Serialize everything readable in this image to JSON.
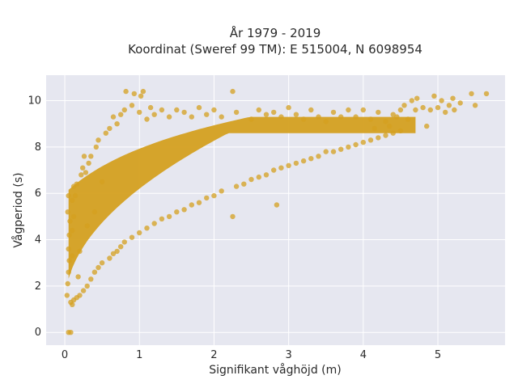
{
  "chart_data": {
    "type": "scatter",
    "title": "År 1979 - 2019",
    "subtitle": "Koordinat (Sweref 99 TM): E 515004, N 6098954",
    "xlabel": "Signifikant våghöjd (m)",
    "ylabel": "Vågperiod (s)",
    "xlim": [
      -0.25,
      5.9
    ],
    "ylim": [
      -0.55,
      11.1
    ],
    "xticks": [
      0,
      1,
      2,
      3,
      4,
      5
    ],
    "xtick_labels": [
      "0",
      "1",
      "2",
      "3",
      "4",
      "5"
    ],
    "yticks": [
      0,
      2,
      4,
      6,
      8,
      10
    ],
    "ytick_labels": [
      "0",
      "2",
      "4",
      "6",
      "8",
      "10"
    ],
    "grid": true,
    "legend": "none",
    "series": [
      {
        "color": "#D4A020",
        "points": [
          [
            0.05,
            0.0
          ],
          [
            0.08,
            0.0
          ],
          [
            0.03,
            1.6
          ],
          [
            0.04,
            2.1
          ],
          [
            0.05,
            2.6
          ],
          [
            0.06,
            3.1
          ],
          [
            0.05,
            3.6
          ],
          [
            0.06,
            4.2
          ],
          [
            0.04,
            5.2
          ],
          [
            0.05,
            5.9
          ],
          [
            0.07,
            4.8
          ],
          [
            0.08,
            1.3
          ],
          [
            0.1,
            1.2
          ],
          [
            0.12,
            1.4
          ],
          [
            0.1,
            3.3
          ],
          [
            0.1,
            4.4
          ],
          [
            0.12,
            5.0
          ],
          [
            0.1,
            5.7
          ],
          [
            0.12,
            6.3
          ],
          [
            0.14,
            5.9
          ],
          [
            0.16,
            6.4
          ],
          [
            0.16,
            1.5
          ],
          [
            0.18,
            2.4
          ],
          [
            0.2,
            1.6
          ],
          [
            0.2,
            3.5
          ],
          [
            0.22,
            6.8
          ],
          [
            0.24,
            7.1
          ],
          [
            0.25,
            1.8
          ],
          [
            0.26,
            7.6
          ],
          [
            0.28,
            6.9
          ],
          [
            0.3,
            2.0
          ],
          [
            0.3,
            4.6
          ],
          [
            0.32,
            7.3
          ],
          [
            0.35,
            2.3
          ],
          [
            0.35,
            7.6
          ],
          [
            0.4,
            2.6
          ],
          [
            0.4,
            5.2
          ],
          [
            0.42,
            8.0
          ],
          [
            0.45,
            2.8
          ],
          [
            0.45,
            8.3
          ],
          [
            0.5,
            3.0
          ],
          [
            0.5,
            6.5
          ],
          [
            0.55,
            8.6
          ],
          [
            0.6,
            3.2
          ],
          [
            0.6,
            8.8
          ],
          [
            0.65,
            3.4
          ],
          [
            0.65,
            9.3
          ],
          [
            0.7,
            3.5
          ],
          [
            0.7,
            9.0
          ],
          [
            0.75,
            3.7
          ],
          [
            0.75,
            9.4
          ],
          [
            0.8,
            3.9
          ],
          [
            0.8,
            9.6
          ],
          [
            0.82,
            10.4
          ],
          [
            0.9,
            4.1
          ],
          [
            0.9,
            9.8
          ],
          [
            0.93,
            10.3
          ],
          [
            1.0,
            4.3
          ],
          [
            1.0,
            9.5
          ],
          [
            1.02,
            10.2
          ],
          [
            1.05,
            10.4
          ],
          [
            1.1,
            4.5
          ],
          [
            1.1,
            9.2
          ],
          [
            1.15,
            9.7
          ],
          [
            1.2,
            4.7
          ],
          [
            1.2,
            9.4
          ],
          [
            1.3,
            4.9
          ],
          [
            1.3,
            9.6
          ],
          [
            1.4,
            5.0
          ],
          [
            1.4,
            9.3
          ],
          [
            1.5,
            5.2
          ],
          [
            1.5,
            9.6
          ],
          [
            1.6,
            5.3
          ],
          [
            1.6,
            9.5
          ],
          [
            1.7,
            5.5
          ],
          [
            1.7,
            9.3
          ],
          [
            1.8,
            5.6
          ],
          [
            1.8,
            9.7
          ],
          [
            1.9,
            5.8
          ],
          [
            1.9,
            9.4
          ],
          [
            2.0,
            5.9
          ],
          [
            2.0,
            9.6
          ],
          [
            2.1,
            6.1
          ],
          [
            2.1,
            9.3
          ],
          [
            2.25,
            5.0
          ],
          [
            2.25,
            10.4
          ],
          [
            2.3,
            6.3
          ],
          [
            2.3,
            9.5
          ],
          [
            2.4,
            6.4
          ],
          [
            2.5,
            6.6
          ],
          [
            2.5,
            9.2
          ],
          [
            2.6,
            6.7
          ],
          [
            2.6,
            9.6
          ],
          [
            2.7,
            6.8
          ],
          [
            2.7,
            9.4
          ],
          [
            2.8,
            7.0
          ],
          [
            2.8,
            9.5
          ],
          [
            2.84,
            5.5
          ],
          [
            2.9,
            7.1
          ],
          [
            2.9,
            9.3
          ],
          [
            3.0,
            7.2
          ],
          [
            3.0,
            9.7
          ],
          [
            3.1,
            7.3
          ],
          [
            3.1,
            9.4
          ],
          [
            3.2,
            7.4
          ],
          [
            3.2,
            9.2
          ],
          [
            3.3,
            7.5
          ],
          [
            3.3,
            9.6
          ],
          [
            3.4,
            7.6
          ],
          [
            3.4,
            9.3
          ],
          [
            3.5,
            7.8
          ],
          [
            3.5,
            9.1
          ],
          [
            3.6,
            7.8
          ],
          [
            3.6,
            9.5
          ],
          [
            3.7,
            7.9
          ],
          [
            3.7,
            9.3
          ],
          [
            3.8,
            8.0
          ],
          [
            3.8,
            9.6
          ],
          [
            3.9,
            8.1
          ],
          [
            3.9,
            9.3
          ],
          [
            4.0,
            8.2
          ],
          [
            4.0,
            9.6
          ],
          [
            4.1,
            8.3
          ],
          [
            4.1,
            9.2
          ],
          [
            4.15,
            8.8
          ],
          [
            4.2,
            8.4
          ],
          [
            4.2,
            9.5
          ],
          [
            4.3,
            8.5
          ],
          [
            4.3,
            9.1
          ],
          [
            4.35,
            8.9
          ],
          [
            4.4,
            8.6
          ],
          [
            4.4,
            9.4
          ],
          [
            4.45,
            9.3
          ],
          [
            4.5,
            8.7
          ],
          [
            4.5,
            9.6
          ],
          [
            4.55,
            9.8
          ],
          [
            4.6,
            9.2
          ],
          [
            4.65,
            10.0
          ],
          [
            4.7,
            9.6
          ],
          [
            4.72,
            10.1
          ],
          [
            4.8,
            9.7
          ],
          [
            4.85,
            8.9
          ],
          [
            4.9,
            9.6
          ],
          [
            4.95,
            10.2
          ],
          [
            5.0,
            9.7
          ],
          [
            5.05,
            10.0
          ],
          [
            5.1,
            9.5
          ],
          [
            5.15,
            9.8
          ],
          [
            5.2,
            10.1
          ],
          [
            5.22,
            9.6
          ],
          [
            5.3,
            9.9
          ],
          [
            5.45,
            10.3
          ],
          [
            5.5,
            9.8
          ],
          [
            5.65,
            10.3
          ]
        ]
      }
    ]
  }
}
